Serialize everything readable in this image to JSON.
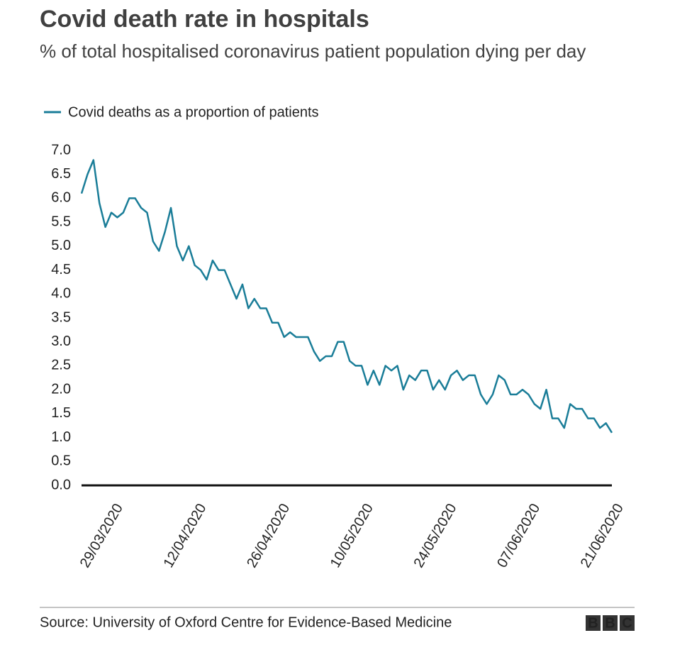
{
  "chart_data": {
    "type": "line",
    "title": "Covid death rate in hospitals",
    "subtitle": "% of total hospitalised coronavirus patient population dying per day",
    "source": "Source: University of Oxford Centre for Evidence-Based Medicine",
    "logo": [
      "B",
      "B",
      "C"
    ],
    "x": [
      "24/03/2020",
      "25/03/2020",
      "26/03/2020",
      "27/03/2020",
      "28/03/2020",
      "29/03/2020",
      "30/03/2020",
      "31/03/2020",
      "01/04/2020",
      "02/04/2020",
      "03/04/2020",
      "04/04/2020",
      "05/04/2020",
      "06/04/2020",
      "07/04/2020",
      "08/04/2020",
      "09/04/2020",
      "10/04/2020",
      "11/04/2020",
      "12/04/2020",
      "13/04/2020",
      "14/04/2020",
      "15/04/2020",
      "16/04/2020",
      "17/04/2020",
      "18/04/2020",
      "19/04/2020",
      "20/04/2020",
      "21/04/2020",
      "22/04/2020",
      "23/04/2020",
      "24/04/2020",
      "25/04/2020",
      "26/04/2020",
      "27/04/2020",
      "28/04/2020",
      "29/04/2020",
      "30/04/2020",
      "01/05/2020",
      "02/05/2020",
      "03/05/2020",
      "04/05/2020",
      "05/05/2020",
      "06/05/2020",
      "07/05/2020",
      "08/05/2020",
      "09/05/2020",
      "10/05/2020",
      "11/05/2020",
      "12/05/2020",
      "13/05/2020",
      "14/05/2020",
      "15/05/2020",
      "16/05/2020",
      "17/05/2020",
      "18/05/2020",
      "19/05/2020",
      "20/05/2020",
      "21/05/2020",
      "22/05/2020",
      "23/05/2020",
      "24/05/2020",
      "25/05/2020",
      "26/05/2020",
      "27/05/2020",
      "28/05/2020",
      "29/05/2020",
      "30/05/2020",
      "31/05/2020",
      "01/06/2020",
      "02/06/2020",
      "03/06/2020",
      "04/06/2020",
      "05/06/2020",
      "06/06/2020",
      "07/06/2020",
      "08/06/2020",
      "09/06/2020",
      "10/06/2020",
      "11/06/2020",
      "12/06/2020",
      "13/06/2020",
      "14/06/2020",
      "15/06/2020",
      "16/06/2020",
      "17/06/2020",
      "18/06/2020",
      "19/06/2020",
      "20/06/2020",
      "21/06/2020"
    ],
    "xticks": [
      "29/03/2020",
      "12/04/2020",
      "26/04/2020",
      "10/05/2020",
      "24/05/2020",
      "07/06/2020",
      "21/06/2020"
    ],
    "series": [
      {
        "name": "Covid deaths as a proportion of patients",
        "color": "#1a7d98",
        "values": [
          6.1,
          6.5,
          6.8,
          5.9,
          5.4,
          5.7,
          5.6,
          5.7,
          6.0,
          6.0,
          5.8,
          5.7,
          5.1,
          4.9,
          5.3,
          5.8,
          5.0,
          4.7,
          5.0,
          4.6,
          4.5,
          4.3,
          4.7,
          4.5,
          4.5,
          4.2,
          3.9,
          4.2,
          3.7,
          3.9,
          3.7,
          3.7,
          3.4,
          3.4,
          3.1,
          3.2,
          3.1,
          3.1,
          3.1,
          2.8,
          2.6,
          2.7,
          2.7,
          3.0,
          3.0,
          2.6,
          2.5,
          2.5,
          2.1,
          2.4,
          2.1,
          2.5,
          2.4,
          2.5,
          2.0,
          2.3,
          2.2,
          2.4,
          2.4,
          2.0,
          2.2,
          2.0,
          2.3,
          2.4,
          2.2,
          2.3,
          2.3,
          1.9,
          1.7,
          1.9,
          2.3,
          2.2,
          1.9,
          1.9,
          2.0,
          1.9,
          1.7,
          1.6,
          2.0,
          1.4,
          1.4,
          1.2,
          1.7,
          1.6,
          1.6,
          1.4,
          1.4,
          1.2,
          1.3,
          1.1
        ]
      }
    ],
    "ylim": [
      0,
      7
    ],
    "yticks": [
      {
        "value": 0,
        "label": "0.0"
      },
      {
        "value": 0.5,
        "label": "0.5"
      },
      {
        "value": 1,
        "label": "1.0"
      },
      {
        "value": 1.5,
        "label": "1.5"
      },
      {
        "value": 2,
        "label": "2.0"
      },
      {
        "value": 2.5,
        "label": "2.5"
      },
      {
        "value": 3,
        "label": "3.0"
      },
      {
        "value": 3.5,
        "label": "3.5"
      },
      {
        "value": 4,
        "label": "4.0"
      },
      {
        "value": 4.5,
        "label": "4.5"
      },
      {
        "value": 5,
        "label": "5.0"
      },
      {
        "value": 5.5,
        "label": "5.5"
      },
      {
        "value": 6,
        "label": "6.0"
      },
      {
        "value": 6.5,
        "label": "6.5"
      },
      {
        "value": 7,
        "label": "7.0"
      }
    ],
    "grid": false
  }
}
